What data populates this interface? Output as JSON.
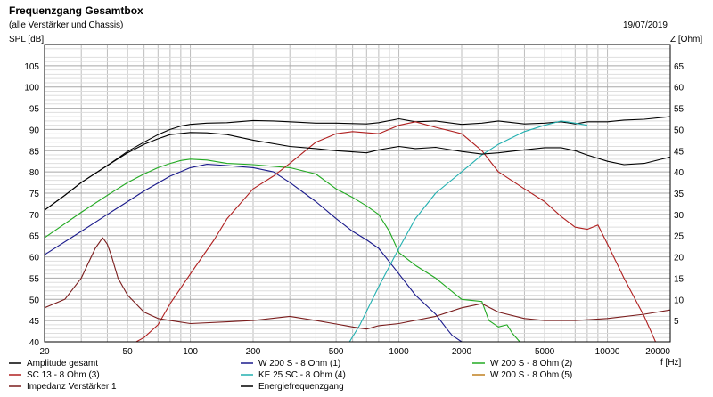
{
  "chart_data": {
    "type": "line",
    "title": "Frequenzgang Gesamtbox",
    "subtitle": "(alle Verstärker und Chassis)",
    "date": "19/07/2019",
    "ylabel": "SPL [dB]",
    "y2label": "Z [Ohm]",
    "xlabel": "f [Hz]",
    "xscale": "log",
    "xlim": [
      20,
      20000
    ],
    "ylim": [
      40,
      110
    ],
    "y2lim": [
      0,
      70
    ],
    "grid": true,
    "legend_position": "bottom",
    "x_ticks": [
      "20",
      "50",
      "100",
      "200",
      "500",
      "1000",
      "2000",
      "5000",
      "10000",
      "20000"
    ],
    "y_ticks": [
      "40",
      "45",
      "50",
      "55",
      "60",
      "65",
      "70",
      "75",
      "80",
      "85",
      "90",
      "95",
      "100",
      "105"
    ],
    "y2_ticks": [
      "5",
      "10",
      "15",
      "20",
      "25",
      "30",
      "35",
      "40",
      "45",
      "50",
      "55",
      "60",
      "65"
    ],
    "series": [
      {
        "name": "Amplitude gesamt",
        "color": "#000000",
        "axis": "left",
        "x": [
          20,
          25,
          30,
          40,
          50,
          60,
          70,
          80,
          90,
          100,
          120,
          150,
          200,
          250,
          300,
          400,
          500,
          700,
          800,
          1000,
          1200,
          1500,
          2000,
          2500,
          3000,
          4000,
          5000,
          6000,
          7000,
          8000,
          10000,
          12000,
          15000,
          20000
        ],
        "y": [
          71,
          74.5,
          77.5,
          81.5,
          84.8,
          87,
          88.8,
          90,
          90.8,
          91.2,
          91.5,
          91.6,
          92.1,
          92,
          91.8,
          91.5,
          91.5,
          91.3,
          91.6,
          92.5,
          91.8,
          92,
          91.2,
          91.5,
          92,
          91.3,
          91.5,
          91.8,
          91.3,
          91.8,
          91.8,
          92.2,
          92.4,
          93
        ]
      },
      {
        "name": "W 200 S - 8 Ohm (1)",
        "color": "#1a1a8c",
        "axis": "left",
        "x": [
          20,
          30,
          40,
          50,
          60,
          80,
          100,
          120,
          150,
          200,
          250,
          300,
          400,
          500,
          600,
          700,
          800,
          1000,
          1200,
          1500,
          1700,
          1800,
          2000
        ],
        "y": [
          60.5,
          66,
          70,
          73,
          75.5,
          79,
          81,
          81.8,
          81.5,
          81,
          80,
          77.5,
          73,
          69,
          66,
          64,
          62,
          56,
          51,
          46.5,
          43,
          41.5,
          40
        ]
      },
      {
        "name": "W 200 S - 8 Ohm (2)",
        "color": "#22aa22",
        "axis": "left",
        "x": [
          20,
          30,
          40,
          50,
          60,
          70,
          80,
          90,
          100,
          120,
          150,
          200,
          300,
          400,
          500,
          600,
          700,
          800,
          900,
          1000,
          1200,
          1500,
          2000,
          2500,
          2700,
          3000,
          3300,
          3500,
          3800
        ],
        "y": [
          64.5,
          70.5,
          74.5,
          77.5,
          79.5,
          81,
          82,
          82.7,
          83,
          82.8,
          82,
          81.7,
          81,
          79.5,
          76,
          74,
          72,
          70,
          66,
          61,
          58,
          55,
          50,
          49.5,
          45,
          43.5,
          44,
          42,
          40
        ]
      },
      {
        "name": "SC 13 - 8 Ohm (3)",
        "color": "#b02020",
        "axis": "left",
        "x": [
          55,
          60,
          70,
          80,
          100,
          130,
          150,
          200,
          250,
          300,
          400,
          500,
          600,
          800,
          1000,
          1200,
          1500,
          2000,
          2500,
          3000,
          4000,
          5000,
          6000,
          7000,
          8000,
          9000,
          10000,
          12000,
          15000,
          17000
        ],
        "y": [
          40,
          41,
          44,
          49,
          56,
          64,
          69,
          76,
          79,
          82,
          87,
          89,
          89.5,
          89,
          91,
          91.8,
          90.5,
          89,
          85,
          80,
          76,
          73,
          69.5,
          67,
          66.5,
          67.5,
          63,
          55,
          46,
          40
        ]
      },
      {
        "name": "KE 25 SC - 8 Ohm      (4)",
        "color": "#22b0b0",
        "axis": "left",
        "x": [
          580,
          650,
          800,
          1000,
          1200,
          1500,
          2000,
          2500,
          3000,
          4000,
          5000,
          6000,
          7000,
          8000
        ],
        "y": [
          40,
          44,
          53,
          62,
          69,
          75,
          80,
          84,
          86.5,
          89.5,
          91,
          92,
          91.5,
          91
        ]
      },
      {
        "name": "W 200 S - 8 Ohm (5)",
        "color": "#c08020",
        "axis": "left",
        "x": [],
        "y": []
      },
      {
        "name": "Impedanz Verstärker 1",
        "color": "#7a1c1c",
        "axis": "right",
        "x": [
          20,
          25,
          30,
          35,
          38,
          40,
          42,
          45,
          50,
          60,
          70,
          80,
          100,
          150,
          200,
          300,
          400,
          500,
          600,
          700,
          800,
          1000,
          1500,
          2000,
          2500,
          3000,
          4000,
          5000,
          7000,
          10000,
          15000,
          20000
        ],
        "y": [
          8,
          10,
          15,
          22,
          24.5,
          23,
          20,
          15,
          11,
          7,
          5.5,
          5,
          4.3,
          4.7,
          5,
          6,
          5,
          4.2,
          3.5,
          3,
          3.8,
          4.3,
          6,
          8,
          9,
          7,
          5.5,
          5,
          5,
          5.5,
          6.5,
          7.5
        ]
      },
      {
        "name": "Energiefrequenzgang",
        "color": "#000000",
        "axis": "left",
        "x": [
          20,
          25,
          30,
          40,
          50,
          60,
          70,
          80,
          100,
          120,
          150,
          200,
          300,
          400,
          500,
          700,
          800,
          1000,
          1200,
          1500,
          2000,
          2500,
          3000,
          4000,
          5000,
          6000,
          7000,
          8000,
          10000,
          12000,
          15000,
          20000
        ],
        "y": [
          71,
          74.5,
          77.5,
          81.5,
          84.5,
          86.5,
          87.8,
          88.8,
          89.3,
          89.2,
          88.8,
          87.5,
          86,
          85.5,
          85,
          84.5,
          85.2,
          86,
          85.5,
          85.8,
          84.8,
          84.2,
          84.5,
          85.2,
          85.7,
          85.7,
          85,
          84,
          82.5,
          81.7,
          82,
          83.5
        ]
      }
    ]
  }
}
